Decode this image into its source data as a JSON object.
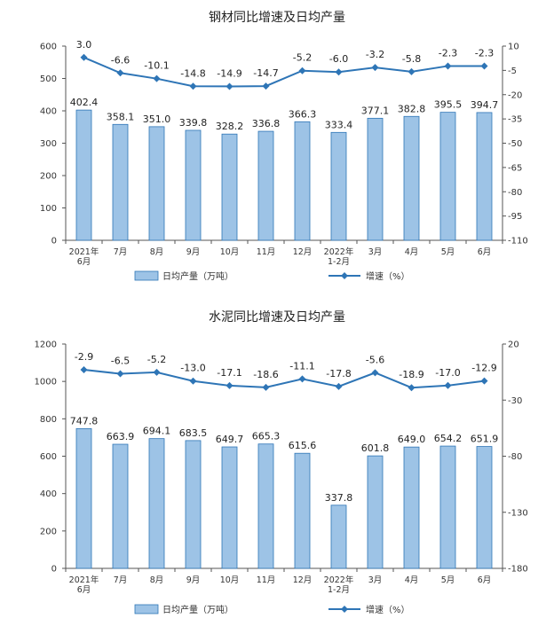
{
  "colors": {
    "bar": "#9DC3E6",
    "bar_stroke": "#2E75B6",
    "line": "#2E75B6",
    "axis": "#555555"
  },
  "chart_data": [
    {
      "type": "bar+line",
      "title": "钢材同比增速及日均产量",
      "categories": [
        [
          "2021年",
          "6月"
        ],
        [
          "7月"
        ],
        [
          "8月"
        ],
        [
          "9月"
        ],
        [
          "10月"
        ],
        [
          "11月"
        ],
        [
          "12月"
        ],
        [
          "2022年",
          "1-2月"
        ],
        [
          "3月"
        ],
        [
          "4月"
        ],
        [
          "5月"
        ],
        [
          "6月"
        ]
      ],
      "bar_series": {
        "name": "日均产量（万吨）",
        "values": [
          402.4,
          358.1,
          351.0,
          339.8,
          328.2,
          336.8,
          366.3,
          333.4,
          377.1,
          382.8,
          395.5,
          394.7
        ],
        "labels": [
          "402.4",
          "358.1",
          "351.0",
          "339.8",
          "328.2",
          "336.8",
          "366.3",
          "333.4",
          "377.1",
          "382.8",
          "395.5",
          "394.7"
        ]
      },
      "line_series": {
        "name": "增速（%）",
        "values": [
          3.0,
          -6.6,
          -10.1,
          -14.8,
          -14.9,
          -14.7,
          -5.2,
          -6.0,
          -3.2,
          -5.8,
          -2.3,
          -2.3
        ],
        "labels": [
          "3.0",
          "-6.6",
          "-10.1",
          "-14.8",
          "-14.9",
          "-14.7",
          "-5.2",
          "-6.0",
          "-3.2",
          "-5.8",
          "-2.3",
          "-2.3"
        ]
      },
      "ylim_left": [
        0,
        600
      ],
      "yticks_left": [
        0,
        100,
        200,
        300,
        400,
        500,
        600
      ],
      "ylim_right": [
        -110,
        10
      ],
      "yticks_right": [
        10,
        -5,
        -20,
        -35,
        -50,
        -65,
        -80,
        -95,
        -110
      ]
    },
    {
      "type": "bar+line",
      "title": "水泥同比增速及日均产量",
      "categories": [
        [
          "2021年",
          "6月"
        ],
        [
          "7月"
        ],
        [
          "8月"
        ],
        [
          "9月"
        ],
        [
          "10月"
        ],
        [
          "11月"
        ],
        [
          "12月"
        ],
        [
          "2022年",
          "1-2月"
        ],
        [
          "3月"
        ],
        [
          "4月"
        ],
        [
          "5月"
        ],
        [
          "6月"
        ]
      ],
      "bar_series": {
        "name": "日均产量（万吨）",
        "values": [
          747.8,
          663.9,
          694.1,
          683.5,
          649.7,
          665.3,
          615.6,
          337.8,
          601.8,
          649.0,
          654.2,
          651.9
        ],
        "labels": [
          "747.8",
          "663.9",
          "694.1",
          "683.5",
          "649.7",
          "665.3",
          "615.6",
          "337.8",
          "601.8",
          "649.0",
          "654.2",
          "651.9"
        ]
      },
      "line_series": {
        "name": "增速（%）",
        "values": [
          -2.9,
          -6.5,
          -5.2,
          -13.0,
          -17.1,
          -18.6,
          -11.1,
          -17.8,
          -5.6,
          -18.9,
          -17.0,
          -12.9
        ],
        "labels": [
          "-2.9",
          "-6.5",
          "-5.2",
          "-13.0",
          "-17.1",
          "-18.6",
          "-11.1",
          "-17.8",
          "-5.6",
          "-18.9",
          "-17.0",
          "-12.9"
        ]
      },
      "ylim_left": [
        0,
        1200
      ],
      "yticks_left": [
        0,
        200,
        400,
        600,
        800,
        1000,
        1200
      ],
      "ylim_right": [
        -180,
        20
      ],
      "yticks_right": [
        20,
        -30,
        -80,
        -130,
        -180
      ]
    }
  ]
}
